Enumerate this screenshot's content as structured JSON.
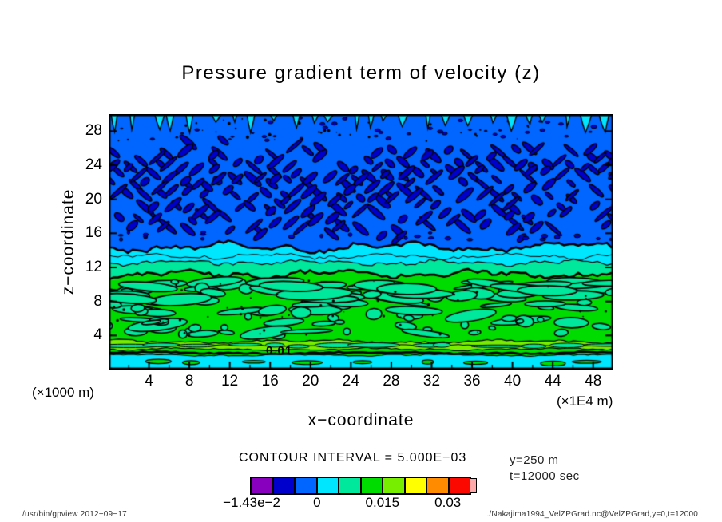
{
  "title": "Pressure gradient term of velocity (z)",
  "axis": {
    "x_label": "x−coordinate",
    "y_label": "z−coordinate",
    "x_unit_left": "(×1000 m)",
    "x_unit_right": "(×1E4 m)"
  },
  "legend": {
    "contour_interval_text": "CONTOUR INTERVAL = 5.000E−03",
    "labels": [
      {
        "text": "−1.43e−2",
        "boundary_index": 0
      },
      {
        "text": "0",
        "boundary_index": 3
      },
      {
        "text": "0.015",
        "boundary_index": 6
      },
      {
        "text": "0.03",
        "boundary_index": 9
      }
    ],
    "slice_y": "y=250 m",
    "slice_t": "t=12000 sec"
  },
  "contour_label_text": "0.01",
  "footer": {
    "left": "/usr/bin/gpview  2012−09−17",
    "right": "./Nakajima1994_VelZPGrad.nc@VelZPGrad,y=0,t=12000"
  },
  "chart_data": {
    "type": "filled-contour",
    "title": "Pressure gradient term of velocity (z)",
    "xlabel": "x−coordinate",
    "ylabel": "z−coordinate",
    "x_unit": "x1E4 m",
    "y_unit": "x1000 m",
    "xlim": [
      0,
      50
    ],
    "ylim": [
      0,
      30
    ],
    "x_ticks": [
      4,
      8,
      12,
      16,
      20,
      24,
      28,
      32,
      36,
      40,
      44,
      48
    ],
    "y_ticks": [
      4,
      8,
      12,
      16,
      20,
      24,
      28
    ],
    "contour_interval": 0.005,
    "data_min": -0.0143,
    "level_boundaries": [
      -0.01,
      -0.005,
      0,
      0.005,
      0.01,
      0.015,
      0.02,
      0.025,
      0.03
    ],
    "fill_colors": [
      "#8800BE",
      "#0000CC",
      "#0066FF",
      "#00E6FF",
      "#00E89B",
      "#00DC00",
      "#77EE00",
      "#FFFF00",
      "#FF8C00",
      "#FB0800"
    ],
    "overflow_color": "#FFAAAA",
    "grid": false,
    "legend_position": "bottom",
    "contour_label": {
      "text": "0.01",
      "x": 16,
      "z": 2.0
    },
    "vertical_profile_bands": [
      {
        "z_range": [
          14.4,
          30.0
        ],
        "color": "#0066FF",
        "note": "blue field, dark-blue diagonal streak blobs z 15-26, cyan spikes hanging from top edge"
      },
      {
        "z_range": [
          12.55,
          14.4
        ],
        "color": "#00E6FF",
        "note": "cyan band"
      },
      {
        "z_range": [
          11.2,
          12.55
        ],
        "color": "#00E89B",
        "note": "spring-green band"
      },
      {
        "z_range": [
          3.3,
          11.2
        ],
        "color": "#00DC00",
        "note": "green field with spring-green blobs"
      },
      {
        "z_range": [
          2.4,
          3.3
        ],
        "color": "#77EE00",
        "note": "chartreuse band with spring-green patches"
      },
      {
        "z_range": [
          1.7,
          2.4
        ],
        "color": "#00DC00",
        "note": "thin green strip, thick labeled 0.01 contour"
      },
      {
        "z_range": [
          0,
          1.7
        ],
        "color": "#00E6FF",
        "note": "bottom cyan band with small green blobs"
      }
    ],
    "streak_color": "#0000CC",
    "spike_color": "#00E6FF",
    "blob_color": "#00E89B"
  }
}
